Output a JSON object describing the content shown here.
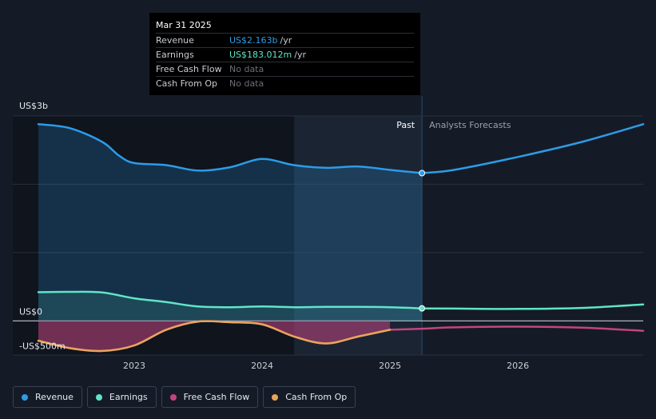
{
  "tooltip": {
    "date": "Mar 31 2025",
    "rows": [
      {
        "label": "Revenue",
        "value": "US$2.163b",
        "unit": "/yr"
      },
      {
        "label": "Earnings",
        "value": "US$183.012m",
        "unit": "/yr"
      },
      {
        "label": "Free Cash Flow",
        "value": "No data",
        "unit": ""
      },
      {
        "label": "Cash From Op",
        "value": "No data",
        "unit": ""
      }
    ]
  },
  "colors": {
    "revenue": "#2d9be8",
    "earnings": "#5fe5c8",
    "free_cash_flow": "#c2457f",
    "cash_from_op": "#e8a55b"
  },
  "legend": [
    {
      "label": "Revenue",
      "color": "#2d9be8"
    },
    {
      "label": "Earnings",
      "color": "#5fe5c8"
    },
    {
      "label": "Free Cash Flow",
      "color": "#c2457f"
    },
    {
      "label": "Cash From Op",
      "color": "#e8a55b"
    }
  ],
  "chart_data": {
    "type": "line",
    "title": "",
    "xlabel": "",
    "ylabel": "",
    "y_unit": "US$ millions",
    "ylim": [
      -500,
      3000
    ],
    "y_tick_labels": [
      {
        "value": 3000,
        "label": "US$3b"
      },
      {
        "value": 0,
        "label": "US$0"
      },
      {
        "value": -500,
        "label": "-US$500m"
      }
    ],
    "x_ticks": [
      2023,
      2024,
      2025,
      2026
    ],
    "x_range": [
      2022.25,
      2026.98
    ],
    "past_label": "Past",
    "forecast_label": "Analysts Forecasts",
    "past_end": 2025.25,
    "highlight_start": 2024.25,
    "series": [
      {
        "name": "Revenue",
        "key": "revenue",
        "area": true,
        "points": [
          [
            2022.25,
            2880
          ],
          [
            2022.5,
            2820
          ],
          [
            2022.75,
            2620
          ],
          [
            2022.88,
            2420
          ],
          [
            2023.0,
            2310
          ],
          [
            2023.25,
            2280
          ],
          [
            2023.5,
            2200
          ],
          [
            2023.75,
            2250
          ],
          [
            2024.0,
            2370
          ],
          [
            2024.25,
            2280
          ],
          [
            2024.5,
            2240
          ],
          [
            2024.75,
            2260
          ],
          [
            2025.0,
            2210
          ],
          [
            2025.25,
            2163
          ]
        ]
      },
      {
        "name": "Revenue forecast",
        "key": "revenue",
        "area": false,
        "points": [
          [
            2025.25,
            2163
          ],
          [
            2025.5,
            2210
          ],
          [
            2026.0,
            2400
          ],
          [
            2026.5,
            2620
          ],
          [
            2026.98,
            2880
          ]
        ]
      },
      {
        "name": "Earnings",
        "key": "earnings",
        "area": true,
        "points": [
          [
            2022.25,
            420
          ],
          [
            2022.5,
            425
          ],
          [
            2022.75,
            415
          ],
          [
            2023.0,
            330
          ],
          [
            2023.25,
            275
          ],
          [
            2023.5,
            210
          ],
          [
            2023.75,
            200
          ],
          [
            2024.0,
            210
          ],
          [
            2024.25,
            200
          ],
          [
            2024.5,
            205
          ],
          [
            2024.75,
            205
          ],
          [
            2025.0,
            200
          ],
          [
            2025.25,
            183
          ]
        ]
      },
      {
        "name": "Earnings forecast",
        "key": "earnings",
        "area": false,
        "points": [
          [
            2025.25,
            183
          ],
          [
            2025.5,
            180
          ],
          [
            2026.0,
            175
          ],
          [
            2026.5,
            190
          ],
          [
            2026.98,
            240
          ]
        ]
      },
      {
        "name": "Free Cash Flow",
        "key": "free_cash_flow",
        "area": true,
        "points": [
          [
            2022.25,
            -290
          ],
          [
            2022.5,
            -400
          ],
          [
            2022.75,
            -440
          ],
          [
            2023.0,
            -360
          ],
          [
            2023.25,
            -130
          ],
          [
            2023.5,
            -10
          ],
          [
            2023.75,
            -20
          ],
          [
            2024.0,
            -50
          ],
          [
            2024.25,
            -230
          ],
          [
            2024.5,
            -330
          ],
          [
            2024.75,
            -230
          ],
          [
            2025.0,
            -130
          ]
        ]
      },
      {
        "name": "Free Cash Flow forecast",
        "key": "free_cash_flow",
        "area": false,
        "points": [
          [
            2025.0,
            -130
          ],
          [
            2025.25,
            -115
          ],
          [
            2025.5,
            -95
          ],
          [
            2026.0,
            -85
          ],
          [
            2026.5,
            -100
          ],
          [
            2026.98,
            -145
          ]
        ]
      },
      {
        "name": "Cash From Op",
        "key": "cash_from_op",
        "area": false,
        "points": [
          [
            2022.25,
            -290
          ],
          [
            2022.5,
            -400
          ],
          [
            2022.75,
            -440
          ],
          [
            2023.0,
            -360
          ],
          [
            2023.25,
            -130
          ],
          [
            2023.5,
            -10
          ],
          [
            2023.75,
            -20
          ],
          [
            2024.0,
            -50
          ],
          [
            2024.25,
            -230
          ],
          [
            2024.5,
            -330
          ],
          [
            2024.75,
            -230
          ],
          [
            2025.0,
            -130
          ]
        ]
      }
    ],
    "markers": [
      {
        "key": "revenue",
        "x": 2025.25,
        "y": 2163
      },
      {
        "key": "earnings",
        "x": 2025.25,
        "y": 183
      }
    ]
  }
}
